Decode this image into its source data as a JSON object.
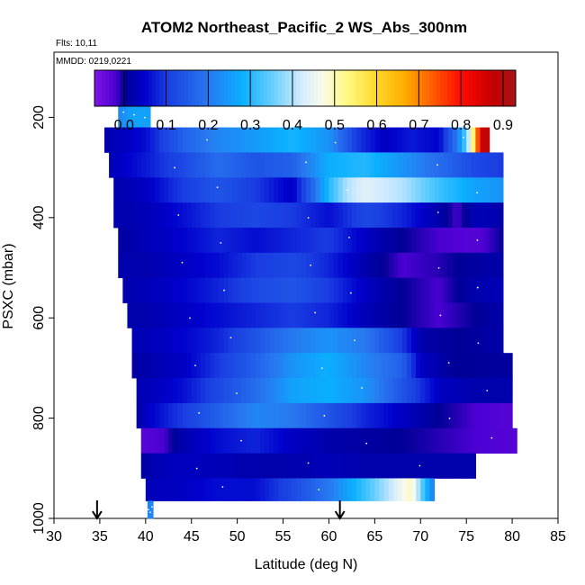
{
  "chart_data": {
    "type": "heatmap",
    "title": "ATOM2 Northeast_Pacific_2 WS_Abs_300nm",
    "flights_label": "Flts: 10,11",
    "dates_label": "MMDD: 0219,0221",
    "xlabel": "Latitude (deg N)",
    "ylabel": "PSXC (mbar)",
    "xlim": [
      30,
      85
    ],
    "ylim": [
      1000,
      70
    ],
    "x_ticks": [
      30,
      35,
      40,
      45,
      50,
      55,
      60,
      65,
      70,
      75,
      80,
      85
    ],
    "y_ticks": [
      200,
      400,
      600,
      800,
      1000
    ],
    "colorbar": {
      "range": [
        -0.07,
        0.93
      ],
      "ticks": [
        0.0,
        0.1,
        0.2,
        0.3,
        0.4,
        0.5,
        0.6,
        0.7,
        0.8,
        0.9
      ],
      "tick_labels": [
        "0.0",
        "0.1",
        "0.2",
        "0.3",
        "0.4",
        "0.5",
        "0.6",
        "0.7",
        "0.8",
        "0.9"
      ]
    },
    "markers_latitude": [
      34.7,
      61.2
    ],
    "rows": [
      {
        "p_top": 170,
        "p_bot": 220,
        "lat_start": 37,
        "lat_end": 40.5,
        "segments": [
          [
            37,
            0.22
          ],
          [
            38.5,
            0.26
          ],
          [
            40.5,
            0.26
          ]
        ]
      },
      {
        "p_top": 220,
        "p_bot": 270,
        "lat_start": 35.5,
        "lat_end": 77.5,
        "segments": [
          [
            35.5,
            0.02
          ],
          [
            40,
            0.06
          ],
          [
            44,
            0.16
          ],
          [
            48,
            0.22
          ],
          [
            52,
            0.25
          ],
          [
            56,
            0.29
          ],
          [
            60,
            0.24
          ],
          [
            63,
            0.1
          ],
          [
            66,
            0.04
          ],
          [
            69,
            0.07
          ],
          [
            72,
            0.05
          ],
          [
            74,
            0.2
          ],
          [
            75,
            0.35
          ],
          [
            75.8,
            0.55
          ],
          [
            76.5,
            0.85
          ],
          [
            77.5,
            0.9
          ]
        ]
      },
      {
        "p_top": 270,
        "p_bot": 320,
        "lat_start": 36,
        "lat_end": 79,
        "segments": [
          [
            36,
            0.03
          ],
          [
            40,
            0.07
          ],
          [
            44,
            0.12
          ],
          [
            48,
            0.18
          ],
          [
            52,
            0.14
          ],
          [
            56,
            0.16
          ],
          [
            60,
            0.28
          ],
          [
            64,
            0.3
          ],
          [
            68,
            0.24
          ],
          [
            72,
            0.18
          ],
          [
            76,
            0.12
          ],
          [
            79,
            0.1
          ]
        ]
      },
      {
        "p_top": 320,
        "p_bot": 370,
        "lat_start": 36.5,
        "lat_end": 79,
        "segments": [
          [
            36.5,
            0.02
          ],
          [
            40,
            0.04
          ],
          [
            44,
            0.1
          ],
          [
            48,
            0.14
          ],
          [
            52,
            0.1
          ],
          [
            56,
            0.04
          ],
          [
            58,
            0.16
          ],
          [
            60,
            0.3
          ],
          [
            62,
            0.4
          ],
          [
            64,
            0.44
          ],
          [
            68,
            0.4
          ],
          [
            72,
            0.32
          ],
          [
            76,
            0.26
          ],
          [
            79,
            0.24
          ]
        ]
      },
      {
        "p_top": 370,
        "p_bot": 420,
        "lat_start": 36.5,
        "lat_end": 79,
        "segments": [
          [
            36.5,
            0.02
          ],
          [
            40,
            0.03
          ],
          [
            44,
            0.06
          ],
          [
            48,
            0.1
          ],
          [
            52,
            0.12
          ],
          [
            56,
            0.1
          ],
          [
            60,
            0.06
          ],
          [
            64,
            0.12
          ],
          [
            68,
            0.08
          ],
          [
            72,
            0.02
          ],
          [
            74,
            -0.02
          ],
          [
            76,
            0.03
          ],
          [
            79,
            0.02
          ]
        ]
      },
      {
        "p_top": 420,
        "p_bot": 470,
        "lat_start": 37,
        "lat_end": 79,
        "segments": [
          [
            37,
            0.01
          ],
          [
            40,
            0.03
          ],
          [
            44,
            0.05
          ],
          [
            48,
            0.08
          ],
          [
            52,
            0.06
          ],
          [
            56,
            0.08
          ],
          [
            60,
            0.1
          ],
          [
            64,
            0.04
          ],
          [
            68,
            0.0
          ],
          [
            72,
            -0.02
          ],
          [
            76,
            -0.03
          ],
          [
            79,
            0.0
          ]
        ]
      },
      {
        "p_top": 470,
        "p_bot": 520,
        "lat_start": 37,
        "lat_end": 79,
        "segments": [
          [
            37,
            0.02
          ],
          [
            40,
            0.02
          ],
          [
            44,
            0.04
          ],
          [
            48,
            0.06
          ],
          [
            52,
            0.1
          ],
          [
            56,
            0.12
          ],
          [
            60,
            0.08
          ],
          [
            64,
            0.02
          ],
          [
            68,
            -0.02
          ],
          [
            72,
            -0.01
          ],
          [
            76,
            0.01
          ],
          [
            79,
            0.02
          ]
        ]
      },
      {
        "p_top": 520,
        "p_bot": 570,
        "lat_start": 37.5,
        "lat_end": 79,
        "segments": [
          [
            37.5,
            0.02
          ],
          [
            40,
            0.03
          ],
          [
            44,
            0.05
          ],
          [
            48,
            0.08
          ],
          [
            52,
            0.12
          ],
          [
            56,
            0.14
          ],
          [
            60,
            0.1
          ],
          [
            64,
            0.04
          ],
          [
            68,
            0.0
          ],
          [
            72,
            -0.02
          ],
          [
            76,
            0.02
          ],
          [
            79,
            0.03
          ]
        ]
      },
      {
        "p_top": 570,
        "p_bot": 620,
        "lat_start": 38,
        "lat_end": 79,
        "segments": [
          [
            38,
            0.02
          ],
          [
            40,
            0.02
          ],
          [
            44,
            0.04
          ],
          [
            48,
            0.06
          ],
          [
            52,
            0.08
          ],
          [
            56,
            0.1
          ],
          [
            60,
            0.08
          ],
          [
            64,
            0.03
          ],
          [
            68,
            0.0
          ],
          [
            72,
            -0.02
          ],
          [
            76,
            0.0
          ],
          [
            79,
            0.02
          ]
        ]
      },
      {
        "p_top": 620,
        "p_bot": 670,
        "lat_start": 38.5,
        "lat_end": 79,
        "segments": [
          [
            38.5,
            0.03
          ],
          [
            40,
            0.03
          ],
          [
            44,
            0.05
          ],
          [
            48,
            0.08
          ],
          [
            52,
            0.14
          ],
          [
            56,
            0.2
          ],
          [
            60,
            0.24
          ],
          [
            64,
            0.2
          ],
          [
            68,
            0.1
          ],
          [
            70,
            0.02
          ],
          [
            74,
            0.0
          ],
          [
            79,
            0.02
          ]
        ]
      },
      {
        "p_top": 670,
        "p_bot": 720,
        "lat_start": 38.5,
        "lat_end": 80,
        "segments": [
          [
            38.5,
            0.01
          ],
          [
            40,
            0.02
          ],
          [
            44,
            0.04
          ],
          [
            48,
            0.1
          ],
          [
            52,
            0.16
          ],
          [
            56,
            0.24
          ],
          [
            60,
            0.28
          ],
          [
            64,
            0.22
          ],
          [
            68,
            0.16
          ],
          [
            70,
            0.04
          ],
          [
            74,
            0.0
          ],
          [
            80,
            0.01
          ]
        ]
      },
      {
        "p_top": 720,
        "p_bot": 770,
        "lat_start": 39,
        "lat_end": 80,
        "segments": [
          [
            39,
            0.02
          ],
          [
            40,
            0.03
          ],
          [
            44,
            0.06
          ],
          [
            48,
            0.12
          ],
          [
            52,
            0.18
          ],
          [
            56,
            0.26
          ],
          [
            60,
            0.28
          ],
          [
            64,
            0.24
          ],
          [
            68,
            0.14
          ],
          [
            72,
            0.04
          ],
          [
            76,
            0.02
          ],
          [
            80,
            0.02
          ]
        ]
      },
      {
        "p_top": 770,
        "p_bot": 820,
        "lat_start": 39,
        "lat_end": 80,
        "segments": [
          [
            39,
            0.01
          ],
          [
            40,
            0.04
          ],
          [
            44,
            0.1
          ],
          [
            48,
            0.16
          ],
          [
            52,
            0.22
          ],
          [
            56,
            0.2
          ],
          [
            60,
            0.14
          ],
          [
            64,
            0.08
          ],
          [
            68,
            0.04
          ],
          [
            72,
            0.0
          ],
          [
            76,
            -0.02
          ],
          [
            80,
            -0.03
          ]
        ]
      },
      {
        "p_top": 820,
        "p_bot": 870,
        "lat_start": 39.5,
        "lat_end": 80.5,
        "segments": [
          [
            39.5,
            -0.03
          ],
          [
            42,
            -0.02
          ],
          [
            44,
            0.02
          ],
          [
            48,
            0.06
          ],
          [
            52,
            0.08
          ],
          [
            56,
            0.04
          ],
          [
            60,
            0.02
          ],
          [
            64,
            0.01
          ],
          [
            68,
            0.0
          ],
          [
            72,
            -0.01
          ],
          [
            76,
            -0.02
          ],
          [
            80.5,
            -0.03
          ]
        ]
      },
      {
        "p_top": 870,
        "p_bot": 920,
        "lat_start": 39.5,
        "lat_end": 76,
        "segments": [
          [
            39.5,
            0.0
          ],
          [
            40,
            0.02
          ],
          [
            44,
            0.04
          ],
          [
            48,
            0.03
          ],
          [
            52,
            0.02
          ],
          [
            56,
            0.02
          ],
          [
            60,
            0.03
          ],
          [
            64,
            0.02
          ],
          [
            68,
            0.02
          ],
          [
            72,
            0.02
          ],
          [
            76,
            0.02
          ]
        ]
      },
      {
        "p_top": 920,
        "p_bot": 965,
        "lat_start": 40,
        "lat_end": 71.5,
        "segments": [
          [
            40,
            0.03
          ],
          [
            44,
            0.04
          ],
          [
            48,
            0.06
          ],
          [
            52,
            0.06
          ],
          [
            56,
            0.12
          ],
          [
            60,
            0.2
          ],
          [
            64,
            0.32
          ],
          [
            67,
            0.42
          ],
          [
            69,
            0.5
          ],
          [
            70.5,
            0.3
          ],
          [
            71.5,
            0.2
          ]
        ]
      },
      {
        "p_top": 965,
        "p_bot": 1000,
        "lat_start": 40.2,
        "lat_end": 40.8,
        "segments": [
          [
            40.2,
            0.22
          ],
          [
            40.8,
            0.22
          ]
        ]
      }
    ]
  }
}
